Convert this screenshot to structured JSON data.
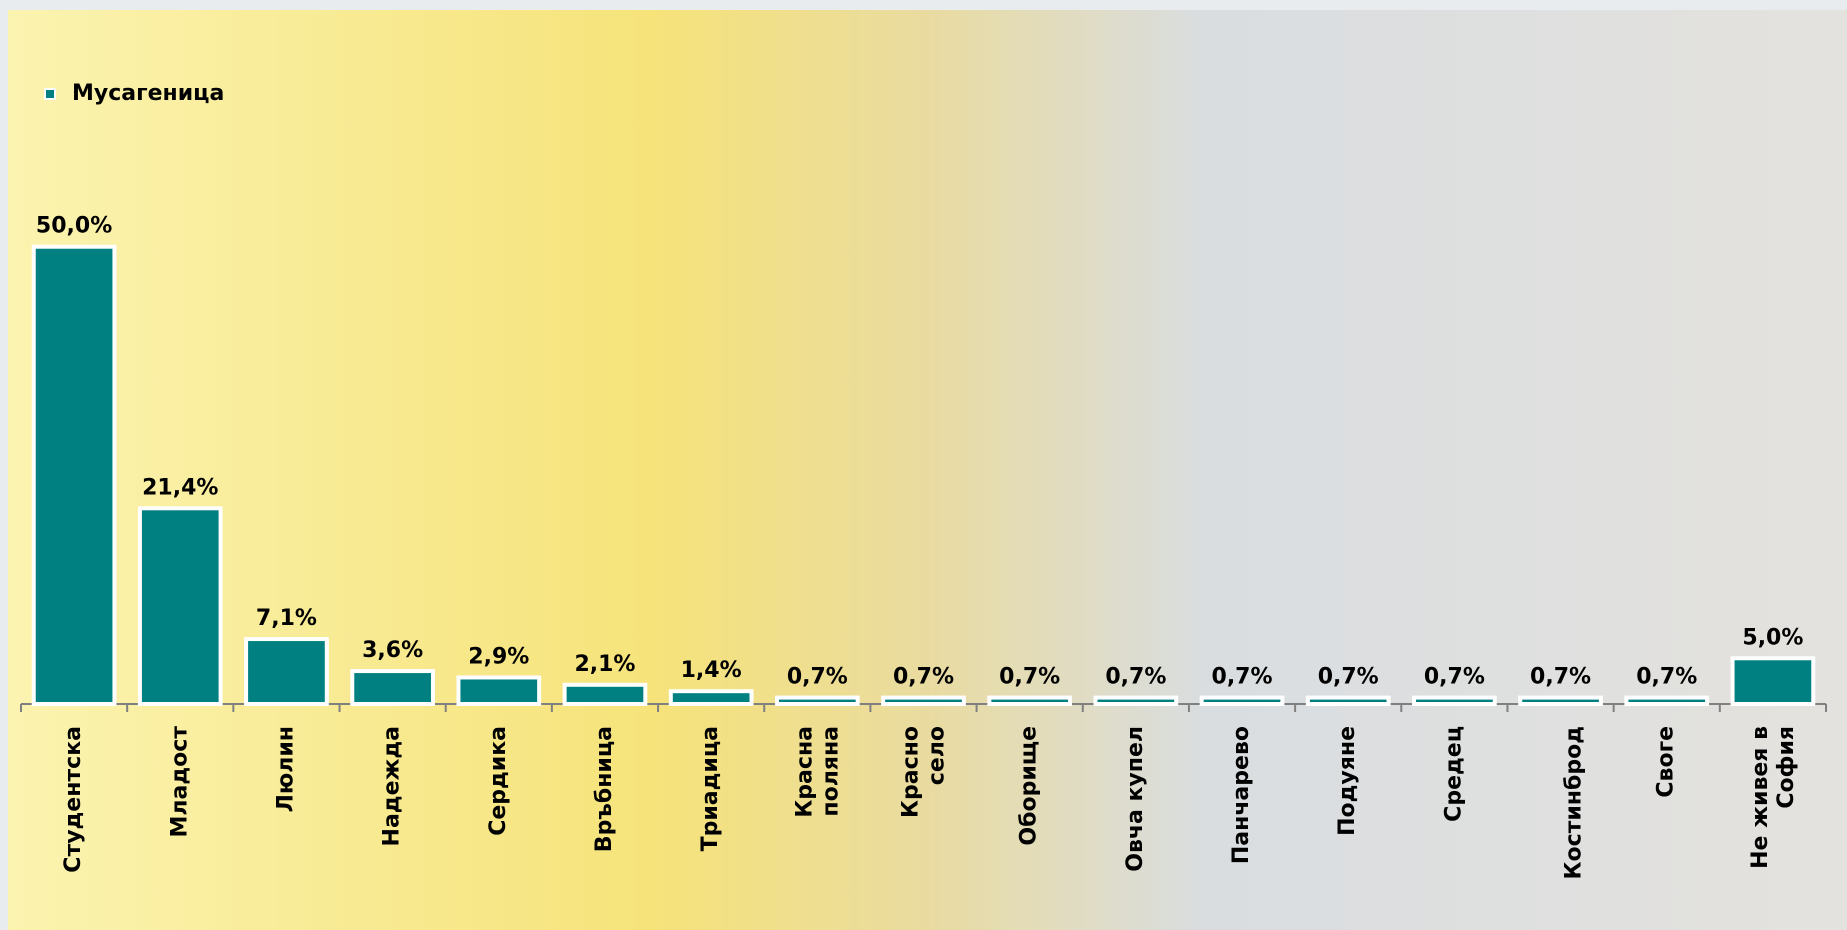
{
  "chart_data": {
    "type": "bar",
    "categories": [
      "Студентска",
      "Младост",
      "Люлин",
      "Надежда",
      "Сердика",
      "Връбница",
      "Триадица",
      "Красна поляна",
      "Красно село",
      "Оборище",
      "Овча купел",
      "Панчарево",
      "Подуяне",
      "Средец",
      "Костинброд",
      "Своге",
      "Не живея в София"
    ],
    "series": [
      {
        "name": "Мусагеница",
        "color": "#008080",
        "values": [
          50.0,
          21.4,
          7.1,
          3.6,
          2.9,
          2.1,
          1.4,
          0.7,
          0.7,
          0.7,
          0.7,
          0.7,
          0.7,
          0.7,
          0.7,
          0.7,
          5.0
        ],
        "value_labels": [
          "50,0%",
          "21,4%",
          "7,1%",
          "3,6%",
          "2,9%",
          "2,1%",
          "1,4%",
          "0,7%",
          "0,7%",
          "0,7%",
          "0,7%",
          "0,7%",
          "0,7%",
          "0,7%",
          "0,7%",
          "0,7%",
          "5,0%"
        ]
      }
    ],
    "ylim": [
      0,
      55
    ],
    "legend": "top-left"
  }
}
